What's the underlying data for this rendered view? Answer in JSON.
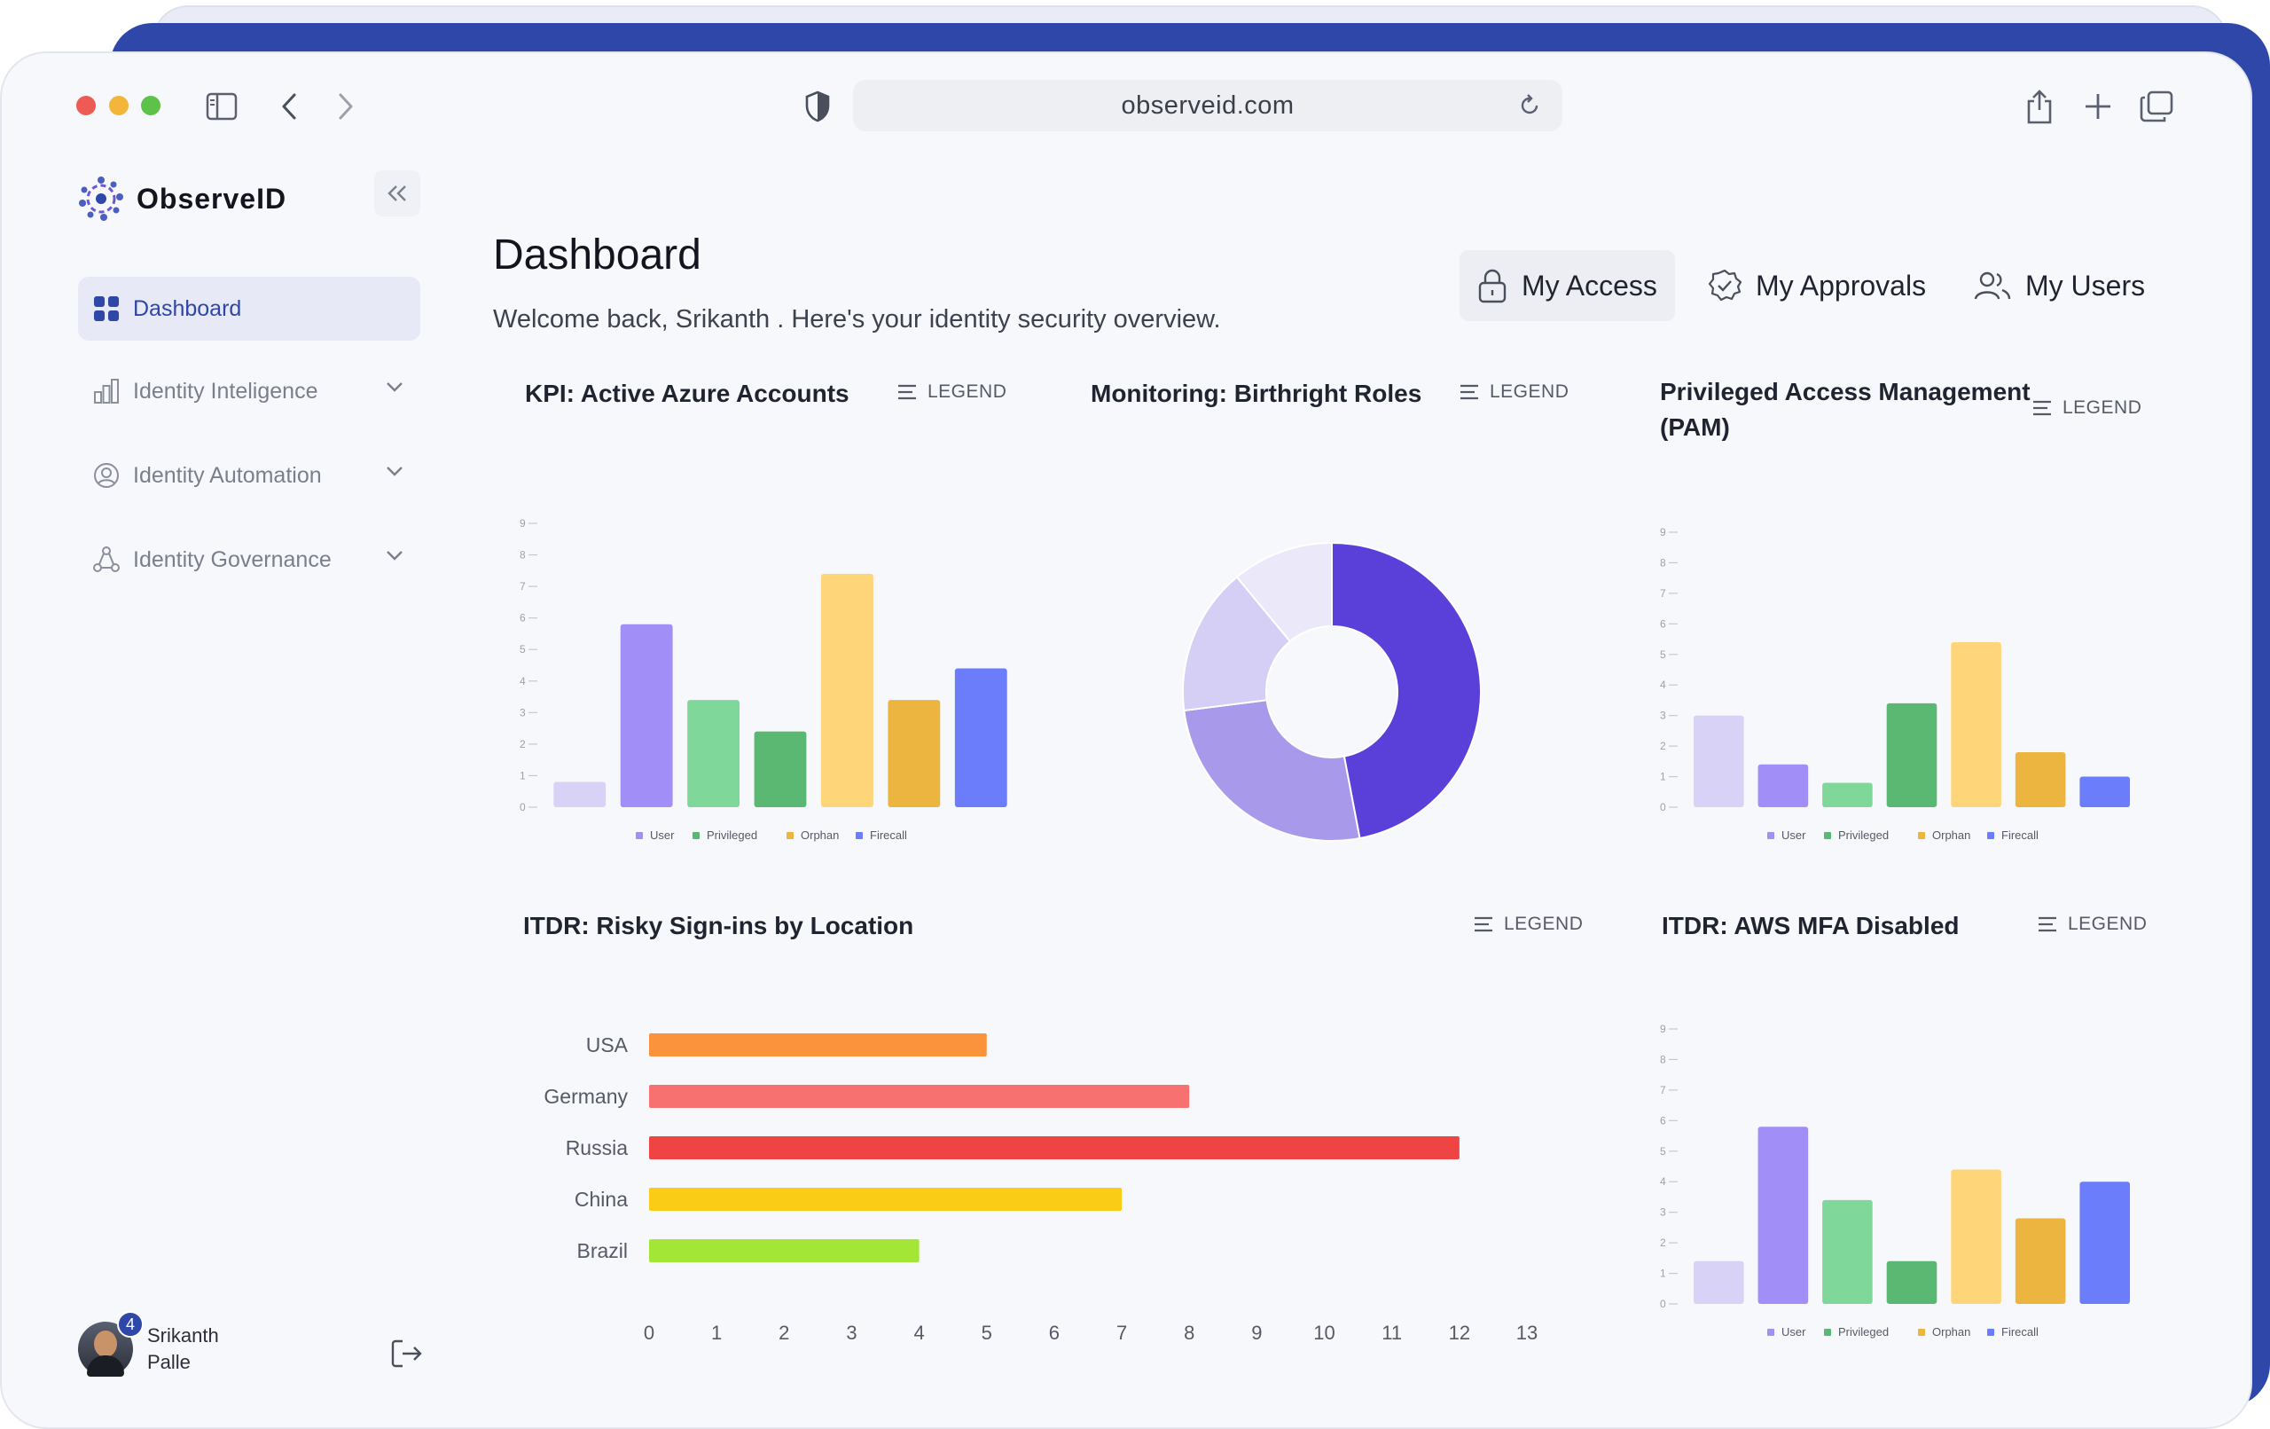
{
  "browser": {
    "url": "observeid.com"
  },
  "sidebar": {
    "brand": "ObserveID",
    "items": [
      {
        "label": "Dashboard",
        "icon": "grid-icon",
        "active": true
      },
      {
        "label": "Identity Inteligence",
        "icon": "bar-chart-icon",
        "active": false
      },
      {
        "label": "Identity Automation",
        "icon": "user-circle-icon",
        "active": false
      },
      {
        "label": "Identity Governance",
        "icon": "network-icon",
        "active": false
      }
    ],
    "user": {
      "first": "Srikanth",
      "last": "Palle",
      "notifications": "4"
    }
  },
  "header": {
    "title": "Dashboard",
    "welcome": "Welcome back, Srikanth . Here's your identity security overview.",
    "tabs": [
      {
        "label": "My Access",
        "icon": "lock-icon",
        "active": true
      },
      {
        "label": "My Approvals",
        "icon": "badge-check-icon",
        "active": false
      },
      {
        "label": "My Users",
        "icon": "users-icon",
        "active": false
      }
    ]
  },
  "legend_label": "LEGEND",
  "cards": {
    "kpi": {
      "title": "KPI: Active Azure Accounts"
    },
    "birthright": {
      "title": "Monitoring: Birthright Roles"
    },
    "pam": {
      "title_line1": "Privileged Access Management",
      "title_line2": "(PAM)"
    },
    "itdr_location": {
      "title": "ITDR: Risky Sign-ins by Location"
    },
    "aws_mfa": {
      "title": "ITDR: AWS MFA Disabled"
    }
  },
  "colors": {
    "bar_palette": [
      "#d9d2f7",
      "#a28ef7",
      "#7fd79a",
      "#5ab873",
      "#ffd57a",
      "#ecb53f",
      "#6b7dfa"
    ],
    "legend_colors": [
      "#a28ef7",
      "#5ab873",
      "#ecb53f",
      "#6b7dfa"
    ],
    "donut": [
      "#5b3fd9",
      "#a899ea",
      "#d6cff5",
      "#ebe8f9"
    ],
    "location": [
      "#fb923c",
      "#f87171",
      "#ef4444",
      "#facc15",
      "#a3e635"
    ]
  },
  "chart_data": [
    {
      "id": "kpi",
      "type": "bar",
      "values": [
        0.8,
        5.8,
        3.4,
        2.4,
        7.4,
        3.4,
        4.4
      ],
      "yticks": [
        "0",
        "1",
        "2",
        "3",
        "4",
        "5",
        "6",
        "7",
        "8",
        "9"
      ],
      "ylim": [
        0,
        9
      ],
      "legend": [
        "User",
        "Privileged",
        "Orphan",
        "Firecall"
      ],
      "legend_placement": "bottom"
    },
    {
      "id": "birthright",
      "type": "pie",
      "values": [
        47,
        26,
        16,
        11
      ]
    },
    {
      "id": "pam",
      "type": "bar",
      "values": [
        3.0,
        1.4,
        0.8,
        3.4,
        5.4,
        1.8,
        1.0
      ],
      "yticks": [
        "0",
        "1",
        "2",
        "3",
        "4",
        "5",
        "6",
        "7",
        "8",
        "9"
      ],
      "ylim": [
        0,
        9
      ],
      "legend": [
        "User",
        "Privileged",
        "Orphan",
        "Firecall"
      ],
      "legend_placement": "bottom"
    },
    {
      "id": "itdr_location",
      "type": "bar",
      "orientation": "horizontal",
      "categories": [
        "USA",
        "Germany",
        "Russia",
        "China",
        "Brazil"
      ],
      "values": [
        5,
        8,
        12,
        7,
        4
      ],
      "xticks": [
        "0",
        "1",
        "2",
        "3",
        "4",
        "5",
        "6",
        "7",
        "8",
        "9",
        "10",
        "11",
        "12",
        "13"
      ],
      "xlim": [
        0,
        13
      ]
    },
    {
      "id": "aws_mfa",
      "type": "bar",
      "values": [
        1.4,
        5.8,
        3.4,
        1.4,
        4.4,
        2.8,
        4.0
      ],
      "yticks": [
        "0",
        "1",
        "2",
        "3",
        "4",
        "5",
        "6",
        "7",
        "8",
        "9"
      ],
      "ylim": [
        0,
        9
      ],
      "legend": [
        "User",
        "Privileged",
        "Orphan",
        "Firecall"
      ],
      "legend_placement": "bottom"
    }
  ]
}
